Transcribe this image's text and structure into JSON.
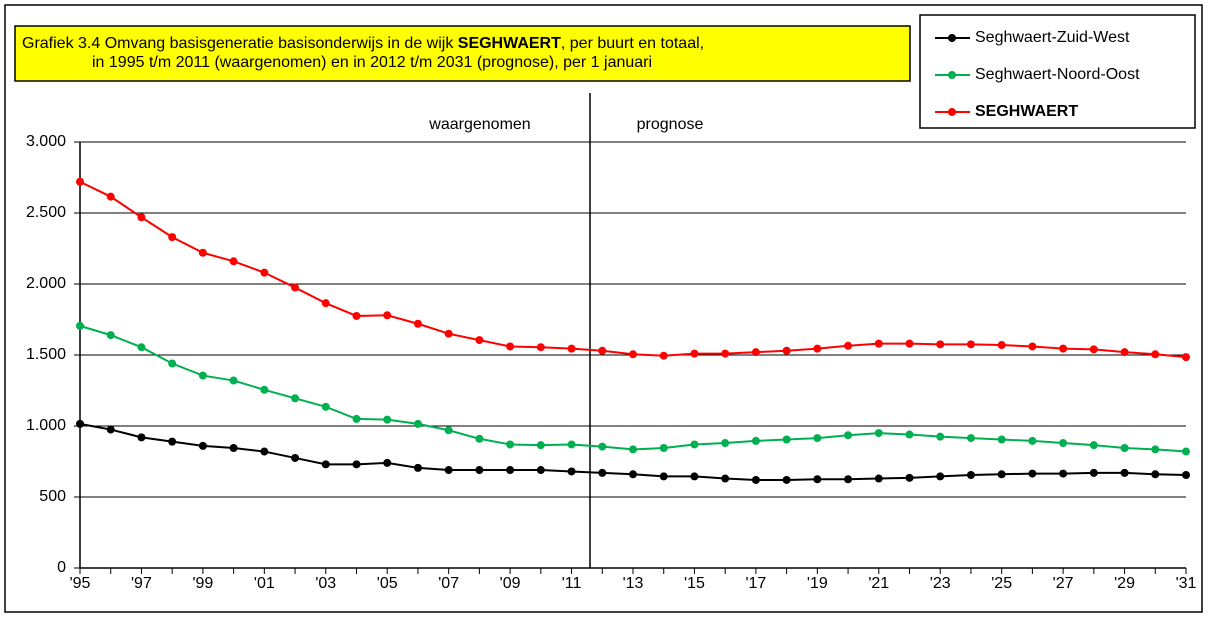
{
  "chart_data": {
    "type": "line",
    "title_lines": [
      [
        "Grafiek 3.4  Omvang basisgeneratie basisonderwijs in de wijk ",
        "SEGHWAERT",
        ", per buurt en totaal,"
      ],
      [
        "in 1995 t/m 2011 (waargenomen) en in 2012 t/m 2031 (prognose), per 1 januari"
      ]
    ],
    "annotations": [
      "waargenomen",
      "prognose"
    ],
    "categories": [
      "'95",
      null,
      "'97",
      null,
      "'99",
      null,
      "'01",
      null,
      "'03",
      null,
      "'05",
      null,
      "'07",
      null,
      "'09",
      null,
      "'11",
      null,
      "'13",
      null,
      "'15",
      null,
      "'17",
      null,
      "'19",
      null,
      "'21",
      null,
      "'23",
      null,
      "'25",
      null,
      "'27",
      null,
      "'29",
      null,
      "'31"
    ],
    "series": [
      {
        "name": "Seghwaert-Zuid-West",
        "color": "#000000",
        "values": [
          1015,
          975,
          920,
          890,
          860,
          845,
          820,
          775,
          730,
          730,
          740,
          705,
          690,
          690,
          690,
          690,
          680,
          670,
          660,
          645,
          645,
          630,
          620,
          620,
          625,
          625,
          630,
          635,
          645,
          655,
          660,
          665,
          665,
          670,
          670,
          660,
          655
        ]
      },
      {
        "name": "Seghwaert-Noord-Oost",
        "color": "#00b050",
        "values": [
          1705,
          1640,
          1555,
          1440,
          1355,
          1320,
          1255,
          1195,
          1135,
          1050,
          1045,
          1015,
          970,
          910,
          870,
          865,
          870,
          855,
          835,
          845,
          870,
          880,
          895,
          905,
          915,
          935,
          950,
          940,
          925,
          915,
          905,
          895,
          880,
          865,
          845,
          835,
          820
        ]
      },
      {
        "name": "SEGHWAERT",
        "color": "#ff0000",
        "values": [
          2720,
          2615,
          2470,
          2330,
          2220,
          2160,
          2080,
          1975,
          1865,
          1775,
          1780,
          1720,
          1650,
          1605,
          1560,
          1555,
          1545,
          1530,
          1505,
          1495,
          1510,
          1510,
          1520,
          1530,
          1545,
          1565,
          1580,
          1580,
          1575,
          1575,
          1570,
          1560,
          1545,
          1540,
          1520,
          1505,
          1485
        ]
      }
    ],
    "ylim": [
      0,
      3000
    ],
    "yticks": [
      0,
      500,
      {
        "value": 1000,
        "label": "1.000"
      },
      {
        "value": 1500,
        "label": "1.500"
      },
      {
        "value": 2000,
        "label": "2.000"
      },
      {
        "value": 2500,
        "label": "2.500"
      },
      {
        "value": 3000,
        "label": "3.000"
      }
    ],
    "grid": true,
    "legend": "top-right"
  }
}
